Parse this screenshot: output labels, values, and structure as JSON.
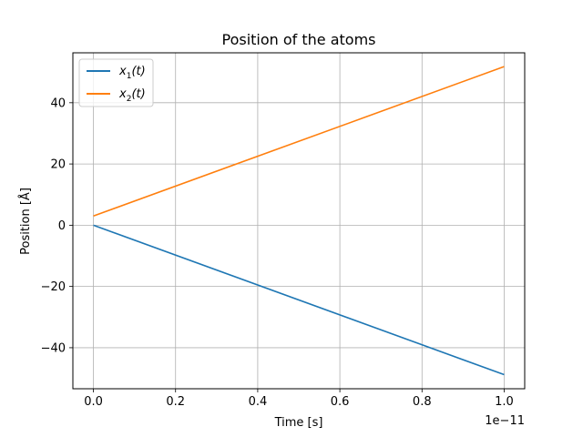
{
  "chart_data": {
    "type": "line",
    "title": "Position of the atoms",
    "xlabel": "Time [s]",
    "ylabel": "Position [Å]",
    "x_offset_label": "1e−11",
    "xlim": [
      -0.05,
      1.05
    ],
    "ylim": [
      -53.4,
      56.3
    ],
    "x_ticks": [
      0.0,
      0.2,
      0.4,
      0.6,
      0.8,
      1.0
    ],
    "x_tick_labels": [
      "0.0",
      "0.2",
      "0.4",
      "0.6",
      "0.8",
      "1.0"
    ],
    "y_ticks": [
      -40,
      -20,
      0,
      20,
      40
    ],
    "y_tick_labels": [
      "−40",
      "−20",
      "0",
      "20",
      "40"
    ],
    "grid": true,
    "legend_position": "top-left",
    "series": [
      {
        "name": "x1(t)",
        "legend_base": "x",
        "legend_sub": "1",
        "legend_rest": "(t)",
        "color": "#1f77b4",
        "x": [
          0.0,
          1.0
        ],
        "y": [
          0.0,
          -48.8
        ]
      },
      {
        "name": "x2(t)",
        "legend_base": "x",
        "legend_sub": "2",
        "legend_rest": "(t)",
        "color": "#ff7f0e",
        "x": [
          0.0,
          1.0
        ],
        "y": [
          3.0,
          51.8
        ]
      }
    ]
  }
}
